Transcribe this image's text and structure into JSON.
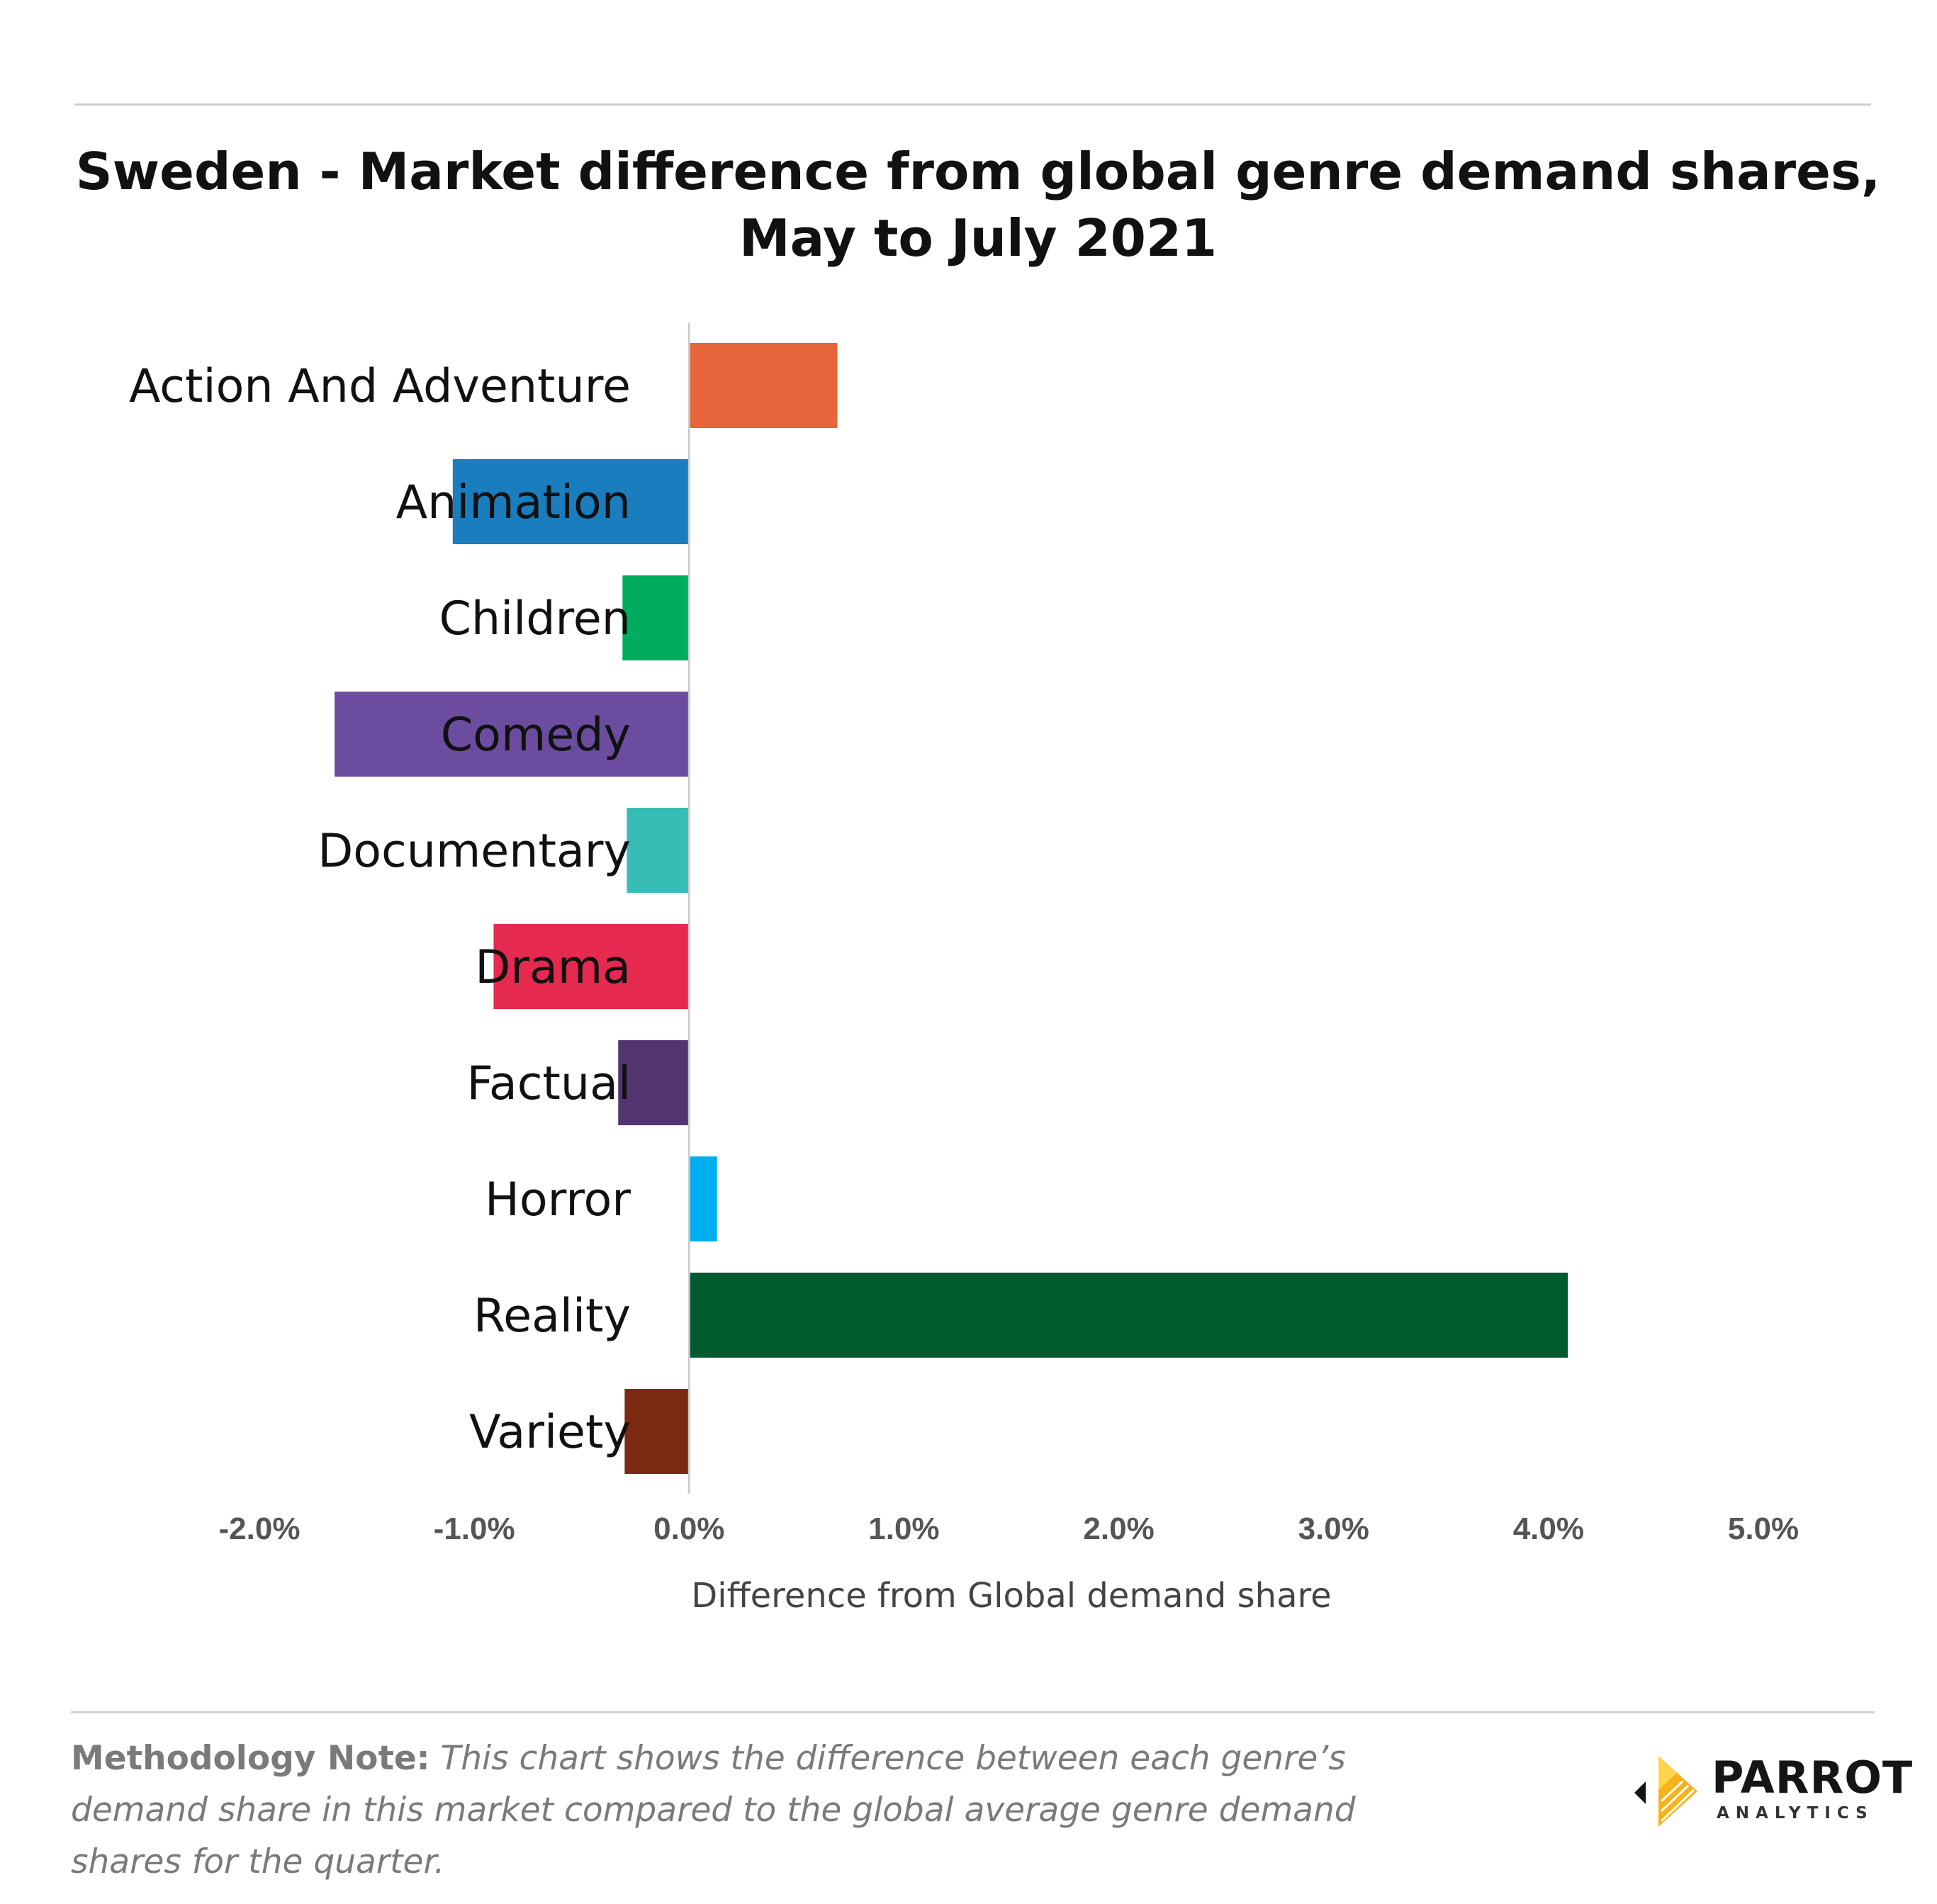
{
  "title": {
    "line1": "Sweden - Market difference from global genre demand shares,",
    "line2": "May to July 2021"
  },
  "chart_data": {
    "type": "bar",
    "orientation": "horizontal",
    "categories": [
      "Action And Adventure",
      "Animation",
      "Children",
      "Comedy",
      "Documentary",
      "Drama",
      "Factual",
      "Horror",
      "Reality",
      "Variety"
    ],
    "values": [
      0.69,
      -1.1,
      -0.31,
      -1.65,
      -0.29,
      -0.91,
      -0.33,
      0.13,
      4.09,
      -0.3
    ],
    "colors": [
      "#E8643A",
      "#1A7DBE",
      "#00AD5E",
      "#6B4C9F",
      "#37BDB5",
      "#E5294F",
      "#52356F",
      "#00AEEF",
      "#015B2F",
      "#7B2A11"
    ],
    "xlim": [
      -2,
      5
    ],
    "ticks": [
      -2,
      -1,
      0,
      1,
      2,
      3,
      4,
      5
    ],
    "tick_labels": [
      "-2.0%",
      "-1.0%",
      "0.0%",
      "1.0%",
      "2.0%",
      "3.0%",
      "4.0%",
      "5.0%"
    ],
    "xlabel": "Difference from Global demand share",
    "ylabel": "",
    "grid": false
  },
  "note": {
    "label": "Methodology Note:",
    "text": " This chart shows the difference between each genre’s demand share in this market compared to the global average genre demand shares for the quarter."
  },
  "logo": {
    "brand": "PARROT",
    "sub": "ANALYTICS"
  }
}
